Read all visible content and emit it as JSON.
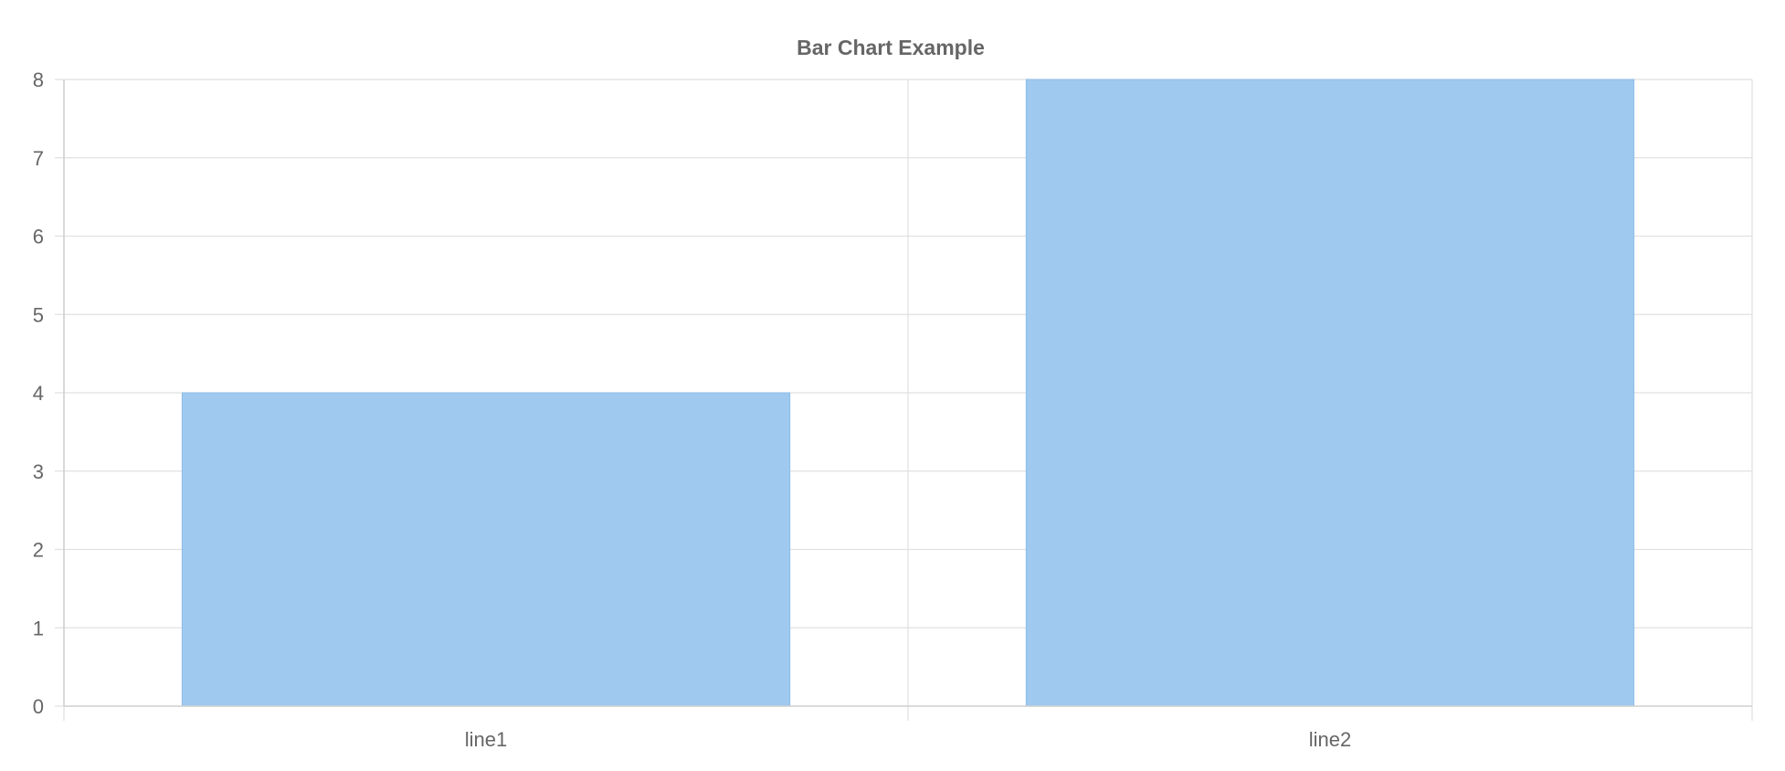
{
  "chart_data": {
    "type": "bar",
    "title": "Bar Chart Example",
    "xlabel": "",
    "ylabel": "",
    "categories": [
      "line1",
      "line2"
    ],
    "series": [
      {
        "values": [
          4,
          8
        ]
      }
    ],
    "ylim": [
      0,
      8
    ],
    "y_ticks": [
      "0",
      "1",
      "2",
      "3",
      "4",
      "5",
      "6",
      "7",
      "8"
    ],
    "grid": true,
    "legend": "none",
    "colors": {
      "bar_fill": "#9fc9ef",
      "bar_stroke": "#8dbde9",
      "text": "#666666",
      "grid": "#e1e1e1",
      "axis": "#cfcfcf"
    }
  }
}
